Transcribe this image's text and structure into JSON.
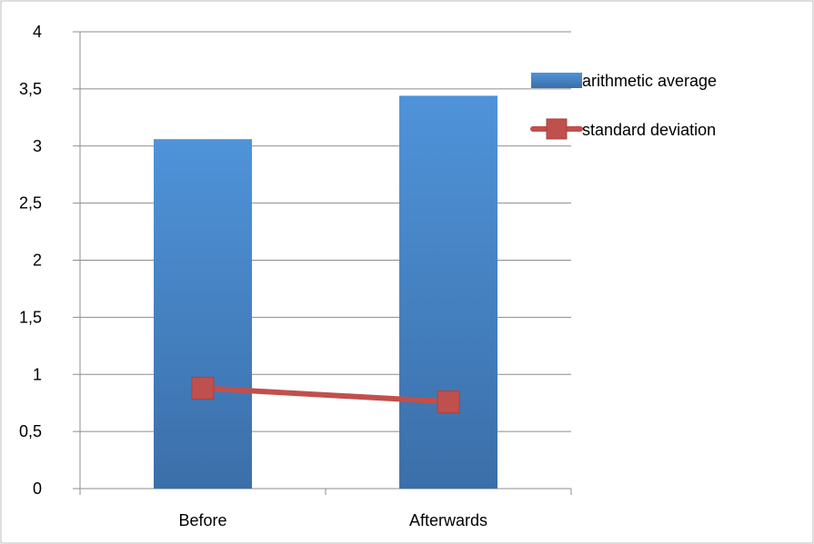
{
  "chart_data": {
    "type": "bar",
    "categories": [
      "Before",
      "Afterwards"
    ],
    "series": [
      {
        "name": "arithmetic average",
        "type": "bar",
        "values": [
          3.06,
          3.44
        ],
        "color": "#4a86c8"
      },
      {
        "name": "standard deviation",
        "type": "line",
        "values": [
          0.88,
          0.76
        ],
        "color": "#c0504d"
      }
    ],
    "ylim": [
      0,
      4
    ],
    "yticks": [
      0,
      0.5,
      1,
      1.5,
      2,
      2.5,
      3,
      3.5,
      4
    ],
    "ytick_labels": [
      "0",
      "0,5",
      "1",
      "1,5",
      "2",
      "2,5",
      "3",
      "3,5",
      "4"
    ],
    "grid": true,
    "legend_position": "right"
  }
}
